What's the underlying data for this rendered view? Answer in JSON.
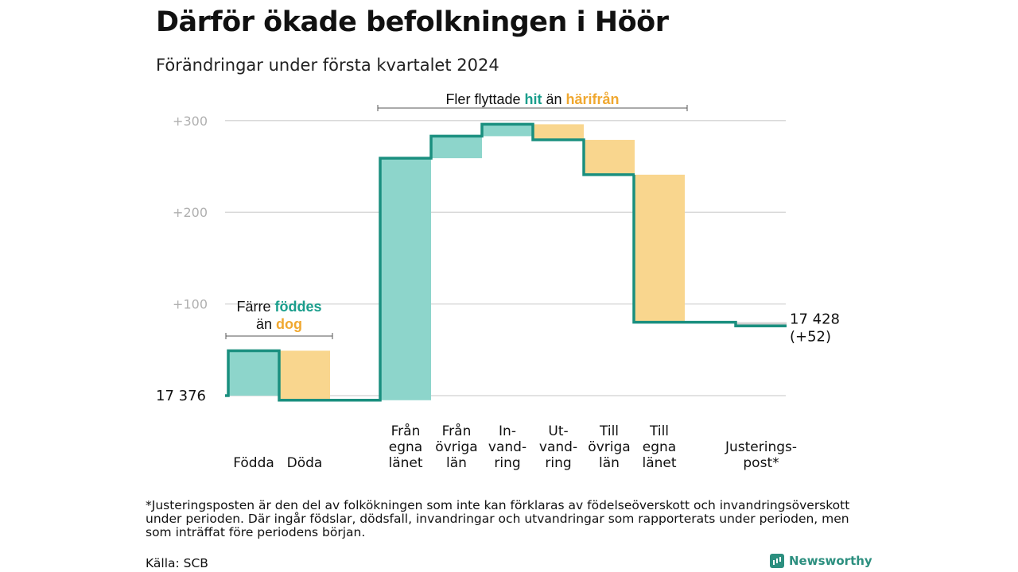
{
  "title": "Därför ökade befolkningen i Höör",
  "subtitle": "Förändringar under första kvartalet 2024",
  "chart_data": {
    "type": "waterfall",
    "start": {
      "label": "17  376",
      "value": 0
    },
    "end": {
      "label_line1": "17 428",
      "label_line2": "(+52)",
      "value": 52
    },
    "ylim": [
      -10,
      320
    ],
    "yticks": [
      {
        "value": 0,
        "label": ""
      },
      {
        "value": 100,
        "label": "+100"
      },
      {
        "value": 200,
        "label": "+200"
      },
      {
        "value": 300,
        "label": "+300"
      }
    ],
    "steps": [
      {
        "label": [
          "Födda"
        ],
        "delta": 49,
        "kind": "inflow"
      },
      {
        "label": [
          "Döda"
        ],
        "delta": -54,
        "kind": "outflow"
      },
      {
        "label": [
          "Från",
          "egna",
          "länet"
        ],
        "delta": 264,
        "kind": "inflow"
      },
      {
        "label": [
          "Från",
          "övriga",
          "län"
        ],
        "delta": 24,
        "kind": "inflow"
      },
      {
        "label": [
          "In-",
          "vand-",
          "ring"
        ],
        "delta": 13,
        "kind": "inflow"
      },
      {
        "label": [
          "Ut-",
          "vand-",
          "ring"
        ],
        "delta": -17,
        "kind": "outflow"
      },
      {
        "label": [
          "Till",
          "övriga",
          "län"
        ],
        "delta": -38,
        "kind": "outflow"
      },
      {
        "label": [
          "Till",
          "egna",
          "länet"
        ],
        "delta": -161,
        "kind": "outflow"
      },
      {
        "label": [
          "Justerings-",
          "post*"
        ],
        "delta": -4,
        "kind": "adjustment"
      }
    ],
    "annotations": [
      {
        "parts": [
          {
            "text": "Färre ",
            "tone": "plain"
          },
          {
            "text": "föddes",
            "tone": "inflow"
          }
        ],
        "parts2": [
          {
            "text": "än ",
            "tone": "plain"
          },
          {
            "text": "dog",
            "tone": "outflow"
          }
        ],
        "span": [
          0,
          1
        ]
      },
      {
        "parts": [
          {
            "text": "Fler flyttade ",
            "tone": "plain"
          },
          {
            "text": "hit",
            "tone": "inflow"
          },
          {
            "text": "  än ",
            "tone": "plain"
          },
          {
            "text": "härifrån",
            "tone": "outflow"
          }
        ],
        "parts2": [],
        "span": [
          2,
          7
        ]
      }
    ],
    "colors": {
      "inflow_fill": "#8dd5cb",
      "outflow_fill": "#f9d68e",
      "adjustment_fill": "#cfcfcf",
      "line": "#1a8f7f",
      "inflow_text": "#1a9e8c",
      "outflow_text": "#f0a830",
      "grid": "#d9d9d9",
      "tick": "#b0b0b0"
    }
  },
  "footnote": "*Justeringsposten är den del av folkökningen som inte kan förklaras av födelseöverskott och invandringsöverskott under perioden. Där ingår födslar, dödsfall, invandringar och utvandringar som rapporterats under perioden, men som inträffat före periodens början.",
  "source": "Källa: SCB",
  "brand": {
    "name": "Newsworthy",
    "icon": "bar-chart-icon"
  }
}
